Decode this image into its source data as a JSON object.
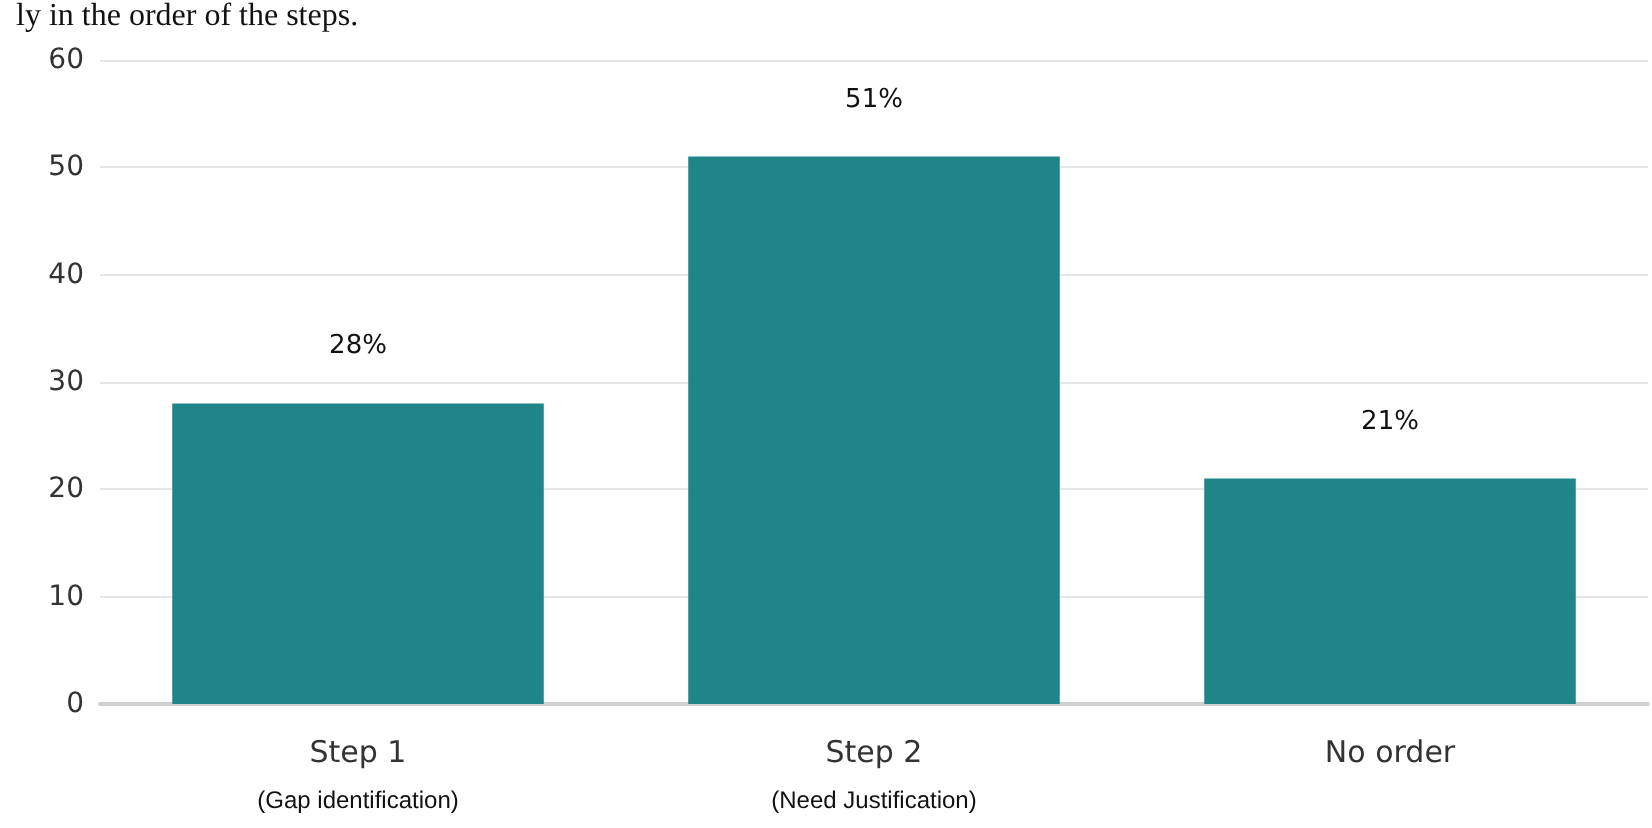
{
  "chart_data": {
    "type": "bar",
    "annotations": [
      "ly in the order of the steps."
    ],
    "categories": [
      "Step 1\n(Gap identification)",
      "Step 2\n(Need Justification)",
      "No order"
    ],
    "values": [
      28,
      51,
      21
    ],
    "value_labels": [
      "28%",
      "51%",
      "21%"
    ],
    "color": "#1f8589",
    "ylim": [
      0,
      60
    ],
    "yticks": [
      0,
      10,
      20,
      30,
      40,
      50,
      60
    ],
    "grid": "y"
  }
}
